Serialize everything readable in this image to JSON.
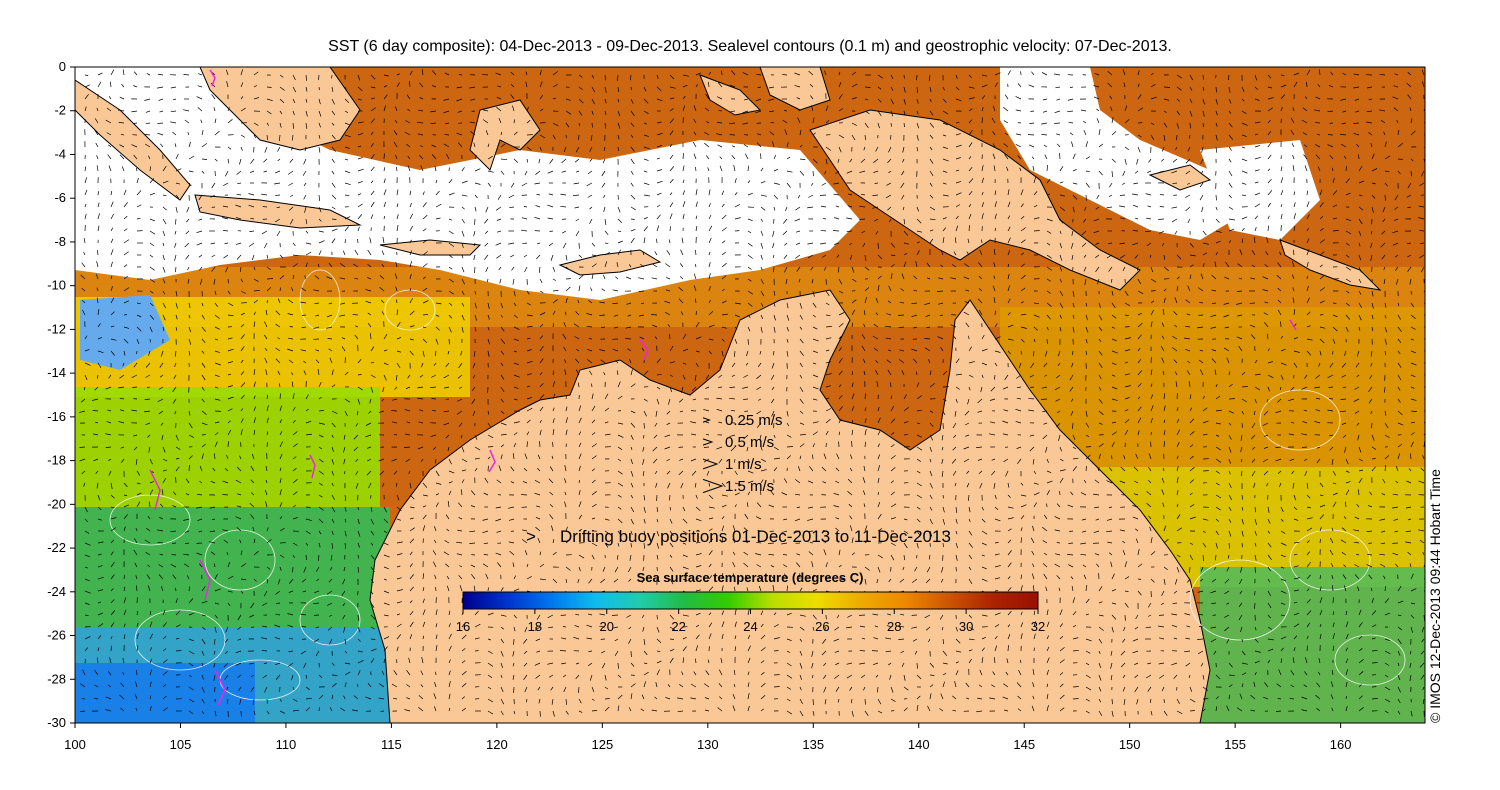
{
  "title": "SST (6 day composite): 04-Dec-2013 - 09-Dec-2013. Sealevel contours (0.1 m) and geostrophic velocity: 07-Dec-2013.",
  "axes": {
    "x_ticks": [
      "100",
      "105",
      "110",
      "115",
      "120",
      "125",
      "130",
      "135",
      "140",
      "145",
      "150",
      "155",
      "160"
    ],
    "x_range": [
      100,
      164
    ],
    "y_ticks": [
      "0",
      "-2",
      "-4",
      "-6",
      "-8",
      "-10",
      "-12",
      "-14",
      "-16",
      "-18",
      "-20",
      "-22",
      "-24",
      "-26",
      "-28",
      "-30"
    ],
    "y_range": [
      -30,
      0
    ]
  },
  "velocity_legend": [
    {
      "label": "0.25 m/s",
      "speed": 0.25
    },
    {
      "label": "0.5 m/s",
      "speed": 0.5
    },
    {
      "label": "1 m/s",
      "speed": 1
    },
    {
      "label": "1.5 m/s",
      "speed": 1.5
    }
  ],
  "buoy_legend": {
    "symbol": ">",
    "label": "Drifting buoy positions 01-Dec-2013 to 11-Dec-2013",
    "color": "#ee22ee"
  },
  "colorbar": {
    "title": "Sea surface temperature (degrees C)",
    "ticks": [
      "16",
      "18",
      "20",
      "22",
      "24",
      "26",
      "28",
      "30",
      "32"
    ],
    "range": [
      16,
      32
    ],
    "colors": [
      "#00008b",
      "#0033cc",
      "#0077ee",
      "#11bbee",
      "#22ccaa",
      "#22bb44",
      "#33cc00",
      "#bbdd00",
      "#eedd00",
      "#eeaa00",
      "#ee8800",
      "#cc5500",
      "#aa2200",
      "#991100"
    ]
  },
  "copyright": "© IMOS 12-Dec-2013 09:44 Hobart Time",
  "colors": {
    "land": "#fac896",
    "cloud": "#ffffff",
    "coast": "#000000",
    "contour": "#ffffff",
    "vector": "#000000"
  }
}
